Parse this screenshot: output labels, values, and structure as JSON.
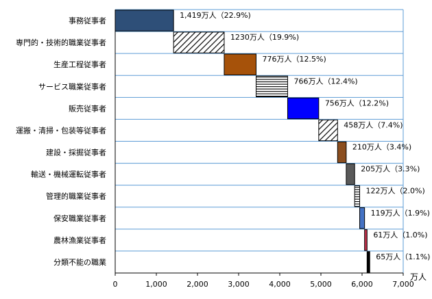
{
  "chart_data": {
    "type": "bar",
    "subtype": "waterfall-horizontal",
    "categories": [
      "事務従事者",
      "専門的・技術的職業従事者",
      "生産工程従事者",
      "サービス職業従事者",
      "販売従事者",
      "運搬・清掃・包装等従事者",
      "建設・採掘従事者",
      "輸送・機械運転従事者",
      "管理的職業従事者",
      "保安職業従事者",
      "農林漁業従事者",
      "分類不能の職業"
    ],
    "values": [
      1419,
      1230,
      776,
      766,
      756,
      458,
      210,
      205,
      122,
      119,
      61,
      65
    ],
    "percent": [
      22.9,
      19.9,
      12.5,
      12.4,
      12.2,
      7.4,
      3.4,
      3.3,
      2.0,
      1.9,
      1.0,
      1.1
    ],
    "data_labels": [
      "1,419万人（22.9%)",
      "1230万人（19.9%)",
      "776万人（12.5%)",
      "766万人（12.4%)",
      "756万人（12.2%)",
      "458万人（7.4%)",
      "210万人（3.4%)",
      "205万人（3.3%)",
      "122万人（2.0%)",
      "119万人（1.9%)",
      "61万人（1.0%)",
      "65万人（1.1%)"
    ],
    "styles": [
      {
        "fill": "#2e4f78",
        "pattern": "solid"
      },
      {
        "fill": "#ffffff",
        "pattern": "diagonal"
      },
      {
        "fill": "#a6520a",
        "pattern": "solid"
      },
      {
        "fill": "#ffffff",
        "pattern": "horizontal"
      },
      {
        "fill": "#0000ff",
        "pattern": "solid"
      },
      {
        "fill": "#ffffff",
        "pattern": "diagonal"
      },
      {
        "fill": "#8b4e1f",
        "pattern": "solid"
      },
      {
        "fill": "#595959",
        "pattern": "solid"
      },
      {
        "fill": "#ffffff",
        "pattern": "horizontal"
      },
      {
        "fill": "#4472c4",
        "pattern": "solid"
      },
      {
        "fill": "#c0304a",
        "pattern": "solid"
      },
      {
        "fill": "#000000",
        "pattern": "solid"
      }
    ],
    "xlim": [
      0,
      7000
    ],
    "xticks": [
      0,
      1000,
      2000,
      3000,
      4000,
      5000,
      6000,
      7000
    ],
    "xtick_labels": [
      "0",
      "1,000",
      "2,000",
      "3,000",
      "4,000",
      "5,000",
      "6,000",
      "7,000"
    ],
    "xunit": "万人",
    "grid": "category-separators",
    "colors": {
      "axis": "#000000",
      "separator": "#5b9bd5"
    }
  }
}
